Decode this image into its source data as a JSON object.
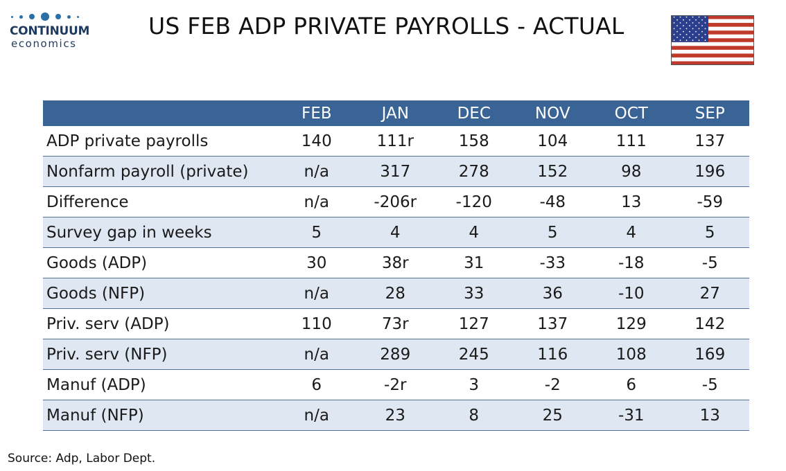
{
  "logo": {
    "name": "CONTINUUM",
    "subtitle": "economics"
  },
  "title": "US FEB ADP PRIVATE PAYROLLS - ACTUAL",
  "flag": "us-flag-icon",
  "colors": {
    "header_bg": "#3b6496",
    "header_text": "#ffffff",
    "alt_row_bg": "#dfe8f2",
    "row_border": "#4d6f9a",
    "logo": "#1f3a5f"
  },
  "source": "Source: Adp, Labor Dept.",
  "chart_data": {
    "type": "table",
    "columns": [
      "",
      "FEB",
      "JAN",
      "DEC",
      "NOV",
      "OCT",
      "SEP"
    ],
    "rows": [
      [
        "ADP private payrolls",
        "140",
        "111r",
        "158",
        "104",
        "111",
        "137"
      ],
      [
        "Nonfarm payroll (private)",
        "n/a",
        "317",
        "278",
        "152",
        "98",
        "196"
      ],
      [
        "Difference",
        "n/a",
        "-206r",
        "-120",
        "-48",
        "13",
        "-59"
      ],
      [
        "Survey gap in weeks",
        "5",
        "4",
        "4",
        "5",
        "4",
        "5"
      ],
      [
        "Goods (ADP)",
        "30",
        "38r",
        "31",
        "-33",
        "-18",
        "-5"
      ],
      [
        "Goods (NFP)",
        "n/a",
        "28",
        "33",
        "36",
        "-10",
        "27"
      ],
      [
        "Priv. serv (ADP)",
        "110",
        "73r",
        "127",
        "137",
        "129",
        "142"
      ],
      [
        "Priv. serv (NFP)",
        "n/a",
        "289",
        "245",
        "116",
        "108",
        "169"
      ],
      [
        "Manuf (ADP)",
        "6",
        "-2r",
        "3",
        "-2",
        "6",
        "-5"
      ],
      [
        "Manuf (NFP)",
        "n/a",
        "23",
        "8",
        "25",
        "-31",
        "13"
      ]
    ]
  }
}
